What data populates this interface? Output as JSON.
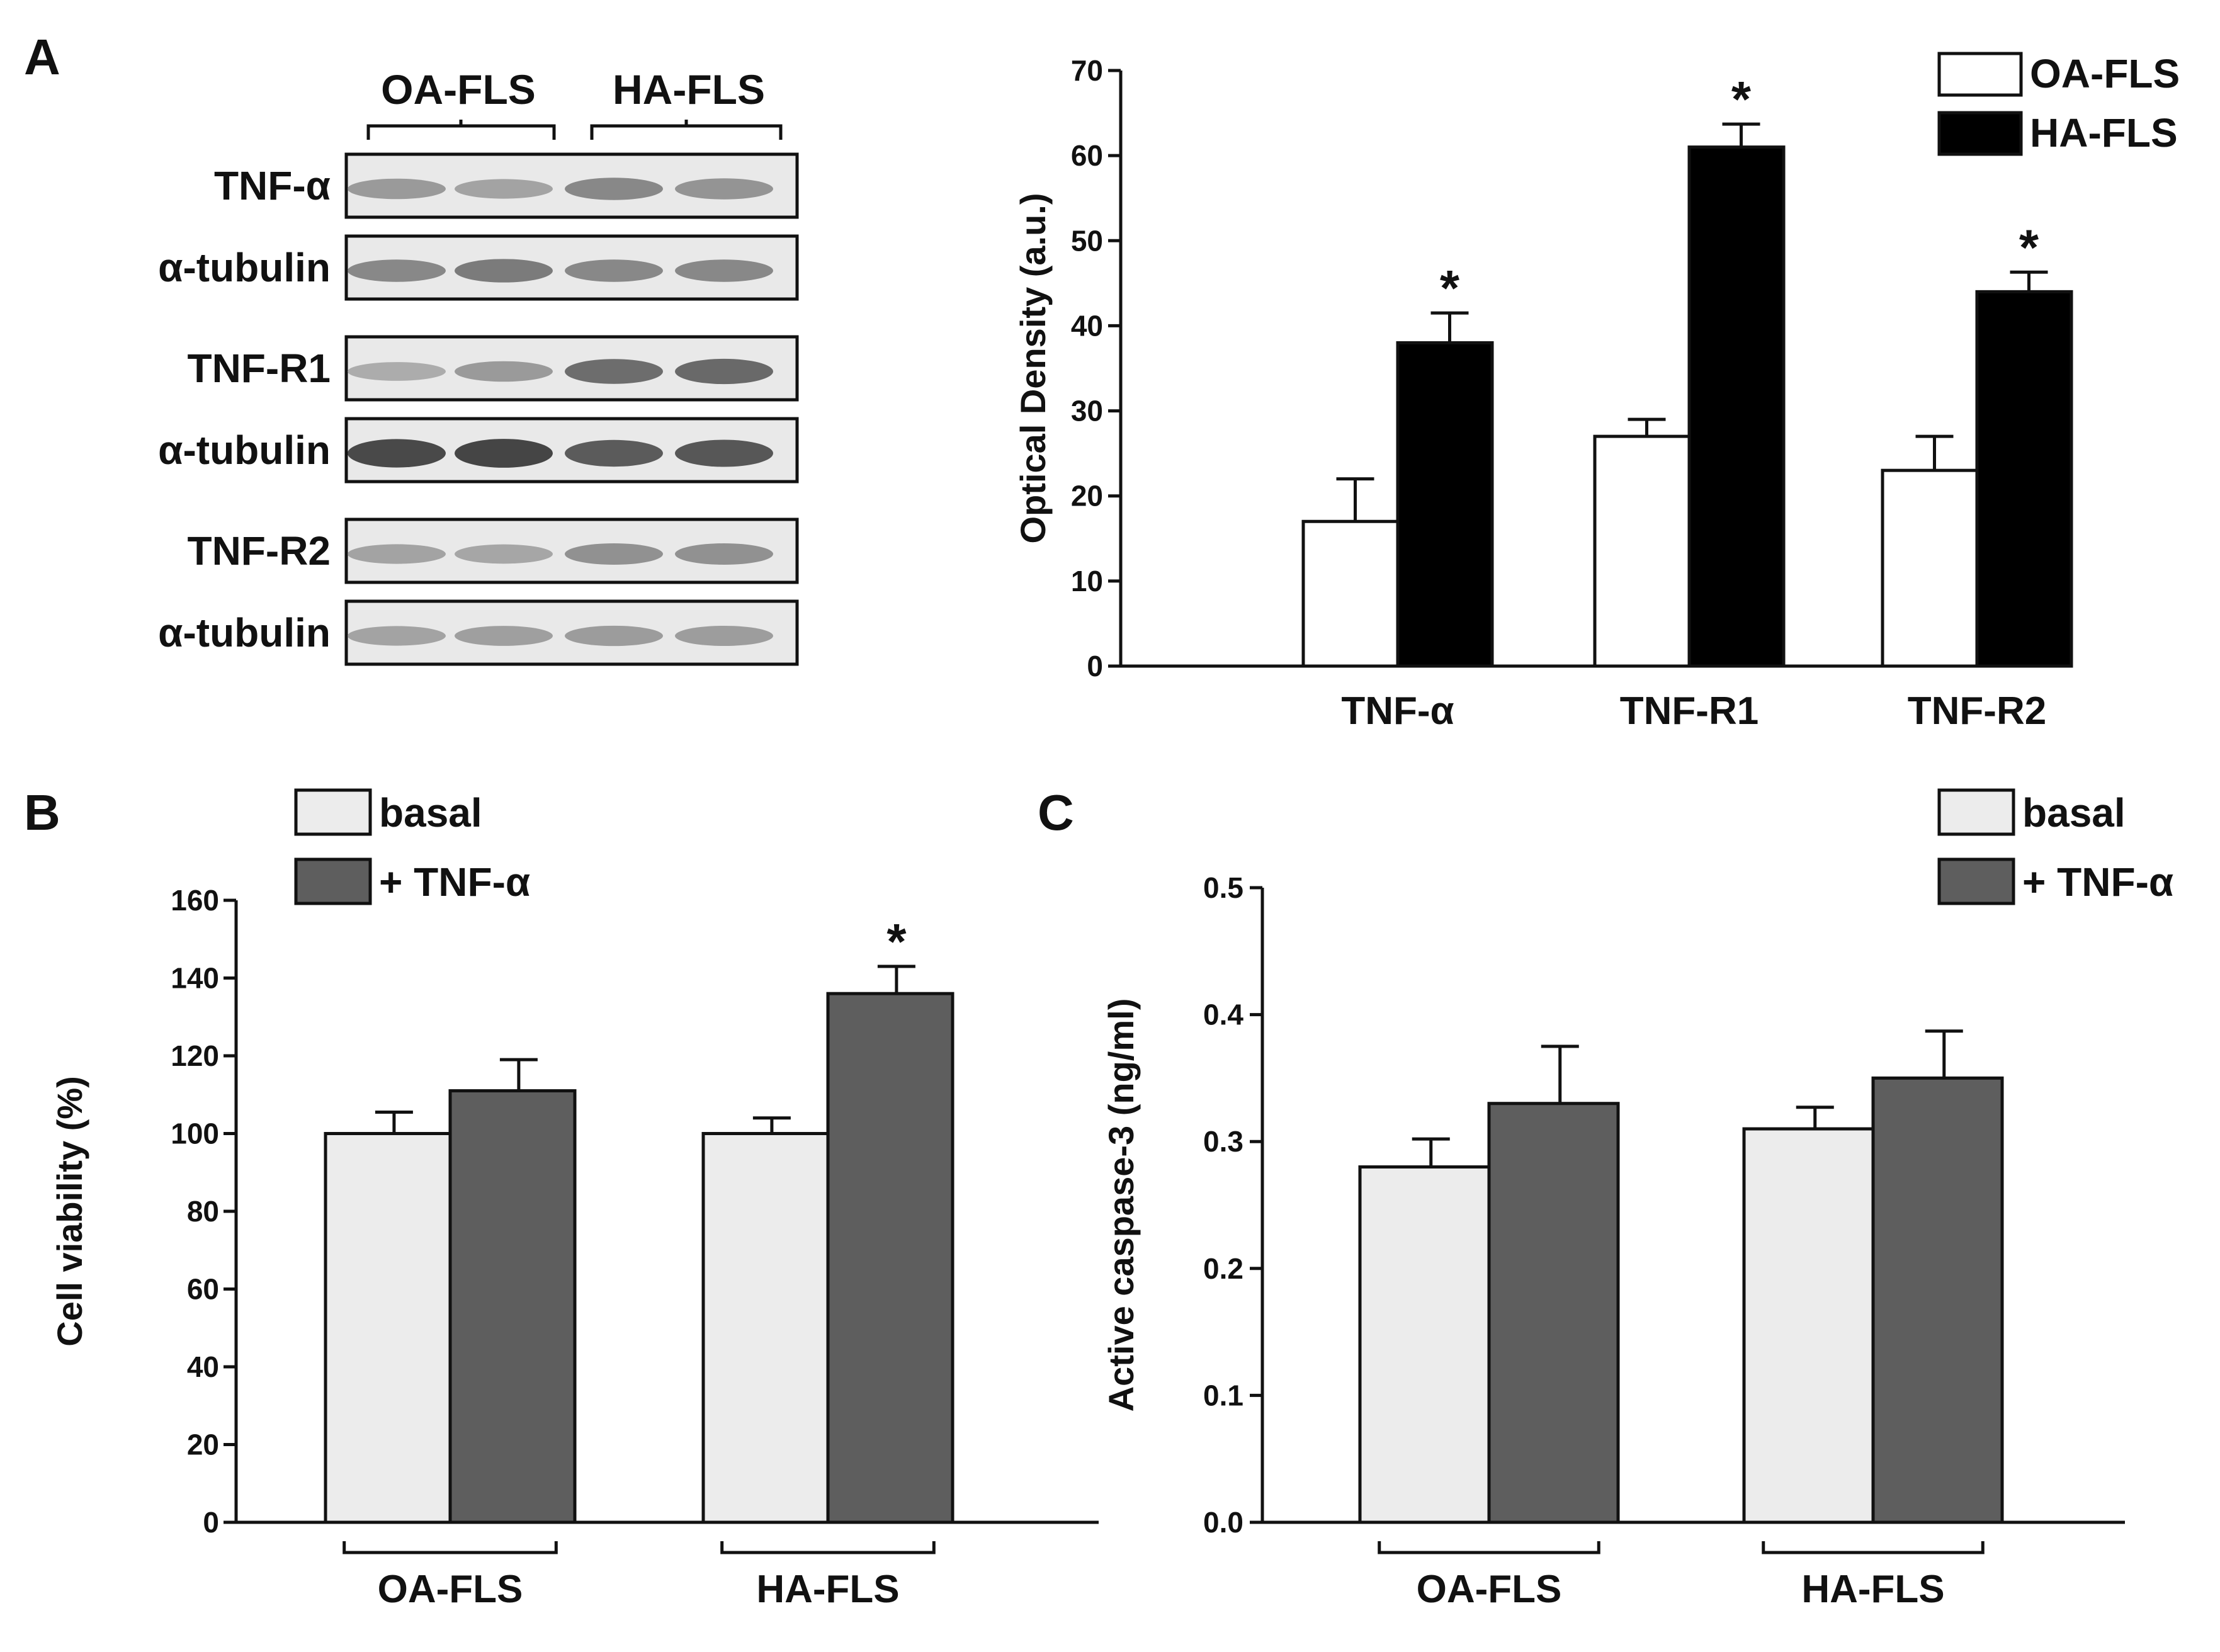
{
  "panels": {
    "A": "A",
    "B": "B",
    "C": "C"
  },
  "blot": {
    "columns": [
      "OA-FLS",
      "HA-FLS"
    ],
    "rows": [
      {
        "label": "TNF-α",
        "intensity": [
          0.45,
          0.4,
          0.55,
          0.48
        ]
      },
      {
        "label": "α-tubulin",
        "intensity": [
          0.55,
          0.62,
          0.55,
          0.55
        ]
      },
      {
        "label": "TNF-R1",
        "intensity": [
          0.35,
          0.45,
          0.7,
          0.72
        ]
      },
      {
        "label": "α-tubulin",
        "intensity": [
          0.9,
          0.92,
          0.8,
          0.82
        ]
      },
      {
        "label": "TNF-R2",
        "intensity": [
          0.4,
          0.38,
          0.5,
          0.5
        ]
      },
      {
        "label": "α-tubulin",
        "intensity": [
          0.4,
          0.42,
          0.44,
          0.43
        ]
      }
    ]
  },
  "chart_data": [
    {
      "id": "A",
      "type": "bar",
      "categories": [
        "TNF-α",
        "TNF-R1",
        "TNF-R2"
      ],
      "series": [
        {
          "name": "OA-FLS",
          "values": [
            17,
            27,
            23
          ],
          "errors": [
            5,
            2,
            4
          ],
          "color": "#ffffff"
        },
        {
          "name": "HA-FLS",
          "values": [
            38,
            61,
            44
          ],
          "errors": [
            3.5,
            2.7,
            2.3
          ],
          "color": "#000000"
        }
      ],
      "significance": [
        "*",
        "*",
        "*"
      ],
      "ylabel": "Optical Density (a.u.)",
      "ylim": [
        0,
        70
      ],
      "yticks": [
        "0",
        "10",
        "20",
        "30",
        "40",
        "50",
        "60",
        "70"
      ],
      "legend": "top-right"
    },
    {
      "id": "B",
      "type": "bar",
      "categories": [
        "OA-FLS",
        "HA-FLS"
      ],
      "series": [
        {
          "name": "basal",
          "values": [
            100,
            100
          ],
          "errors": [
            5.5,
            4
          ],
          "color": "#ececec"
        },
        {
          "name": "+ TNF-α",
          "values": [
            111,
            136
          ],
          "errors": [
            8,
            7
          ],
          "color": "#5e5e5e"
        }
      ],
      "significance": [
        "",
        "*"
      ],
      "ylabel": "Cell viability (%)",
      "ylim": [
        0,
        160
      ],
      "yticks": [
        "0",
        "20",
        "40",
        "60",
        "80",
        "100",
        "120",
        "140",
        "160"
      ],
      "legend": "top-left"
    },
    {
      "id": "C",
      "type": "bar",
      "categories": [
        "OA-FLS",
        "HA-FLS"
      ],
      "series": [
        {
          "name": "basal",
          "values": [
            0.28,
            0.31
          ],
          "errors": [
            0.022,
            0.017
          ],
          "color": "#ececec"
        },
        {
          "name": "+ TNF-α",
          "values": [
            0.33,
            0.35
          ],
          "errors": [
            0.045,
            0.037
          ],
          "color": "#5e5e5e"
        }
      ],
      "significance": [
        "",
        ""
      ],
      "ylabel": "Active caspase-3 (ng/ml)",
      "ylim": [
        0,
        0.5
      ],
      "yticks": [
        "0.0",
        "0.1",
        "0.2",
        "0.3",
        "0.4",
        "0.5"
      ],
      "legend": "top-right"
    }
  ]
}
